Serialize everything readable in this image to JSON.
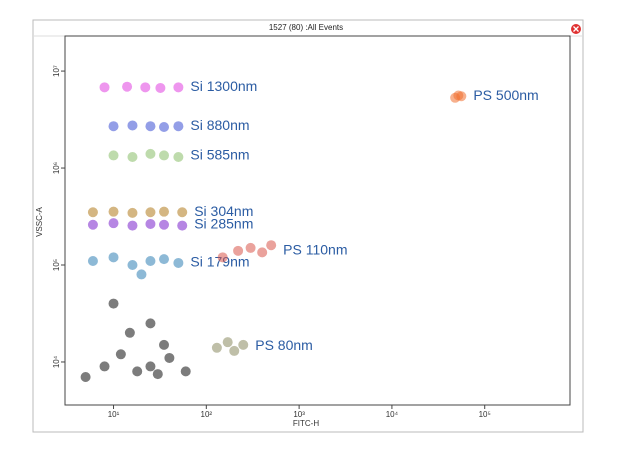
{
  "chart_data": {
    "type": "scatter",
    "title": "1527  (80)  :All Events",
    "x_label": "FITC-H",
    "y_label": "VSSC-A",
    "log_x": true,
    "log_y": true,
    "xlim": [
      3,
      830000
    ],
    "ylim": [
      3600,
      23000000
    ],
    "xticks": [
      {
        "value": 10,
        "label": "10¹"
      },
      {
        "value": 100,
        "label": "10²"
      },
      {
        "value": 1000,
        "label": "10³"
      },
      {
        "value": 10000,
        "label": "10⁴"
      },
      {
        "value": 100000,
        "label": "10⁵"
      }
    ],
    "yticks": [
      {
        "value": 10000,
        "label": "10⁴"
      },
      {
        "value": 100000,
        "label": "10⁵"
      },
      {
        "value": 1000000,
        "label": "10⁶"
      },
      {
        "value": 10000000,
        "label": "10⁷"
      }
    ],
    "series": [
      {
        "color": "#111111",
        "x": [
          5,
          8,
          12,
          18,
          25,
          30,
          40,
          60,
          15,
          25,
          10,
          35
        ],
        "y": [
          7000,
          9000,
          12000,
          8000,
          9000,
          7500,
          11000,
          8000,
          20000,
          25000,
          40000,
          15000
        ]
      },
      {
        "name": "Si 179nm",
        "color": "#2f7fb5",
        "x": [
          6,
          10,
          16,
          25,
          35,
          50,
          20
        ],
        "y": [
          110000,
          120000,
          100000,
          110000,
          115000,
          105000,
          80000
        ]
      },
      {
        "name": "Si 285nm",
        "color": "#7a22cc",
        "x": [
          6,
          10,
          16,
          25,
          35,
          55
        ],
        "y": [
          260000,
          270000,
          255000,
          265000,
          260000,
          255000
        ]
      },
      {
        "name": "Si 304nm",
        "color": "#b07a1c",
        "x": [
          6,
          10,
          16,
          25,
          35,
          55
        ],
        "y": [
          350000,
          355000,
          345000,
          350000,
          355000,
          350000
        ]
      },
      {
        "name": "Si 585nm",
        "color": "#88bd68",
        "x": [
          10,
          16,
          25,
          35,
          50
        ],
        "y": [
          1350000,
          1300000,
          1400000,
          1350000,
          1300000
        ]
      },
      {
        "name": "Si 880nm",
        "color": "#3b4fd4",
        "x": [
          10,
          16,
          25,
          35,
          50
        ],
        "y": [
          2700000,
          2750000,
          2700000,
          2650000,
          2700000
        ]
      },
      {
        "name": "Si 1300nm",
        "color": "#e040e0",
        "x": [
          8,
          14,
          22,
          32,
          50
        ],
        "y": [
          6800000,
          6900000,
          6800000,
          6700000,
          6800000
        ]
      },
      {
        "name": "PS 110nm",
        "color": "#d9554a",
        "x": [
          150,
          220,
          300,
          400,
          500
        ],
        "y": [
          120000,
          140000,
          150000,
          135000,
          160000
        ]
      },
      {
        "name": "PS 80nm",
        "color": "#8a8a60",
        "x": [
          130,
          170,
          200,
          250
        ],
        "y": [
          14000,
          16000,
          13000,
          15000
        ]
      },
      {
        "name": "PS 500nm",
        "color": "#f07030",
        "x": [
          48000,
          52000,
          56000
        ],
        "y": [
          5300000,
          5600000,
          5500000
        ]
      }
    ]
  }
}
